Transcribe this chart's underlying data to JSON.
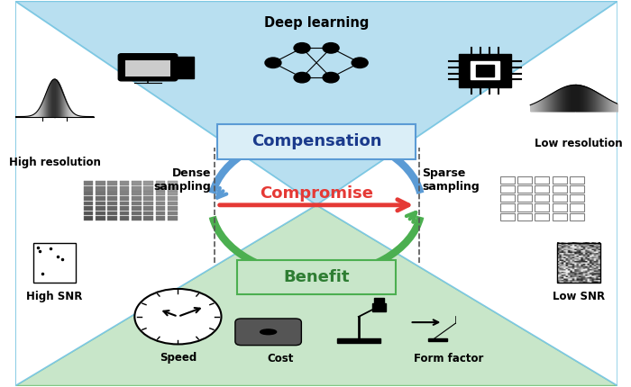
{
  "bg_color": "#ffffff",
  "top_triangle_color": "#b8dff0",
  "bottom_triangle_color": "#c8e6c9",
  "compensation_box_color": "#daeef7",
  "benefit_box_color": "#c8e6c9",
  "compensation_text": "Compensation",
  "benefit_text": "Benefit",
  "compromise_text": "Compromise",
  "deep_learning_text": "Deep learning",
  "high_res_text": "High resolution",
  "low_res_text": "Low resolution",
  "high_snr_text": "High SNR",
  "low_snr_text": "Low SNR",
  "dense_sampling_text": "Dense\nsampling",
  "sparse_sampling_text": "Sparse\nsampling",
  "speed_text": "Speed",
  "cost_text": "Cost",
  "form_factor_text": "Form factor",
  "arrow_blue_color": "#5b9bd5",
  "arrow_green_color": "#4caf50",
  "arrow_red_color": "#e53935",
  "dashed_line_color": "#555555"
}
